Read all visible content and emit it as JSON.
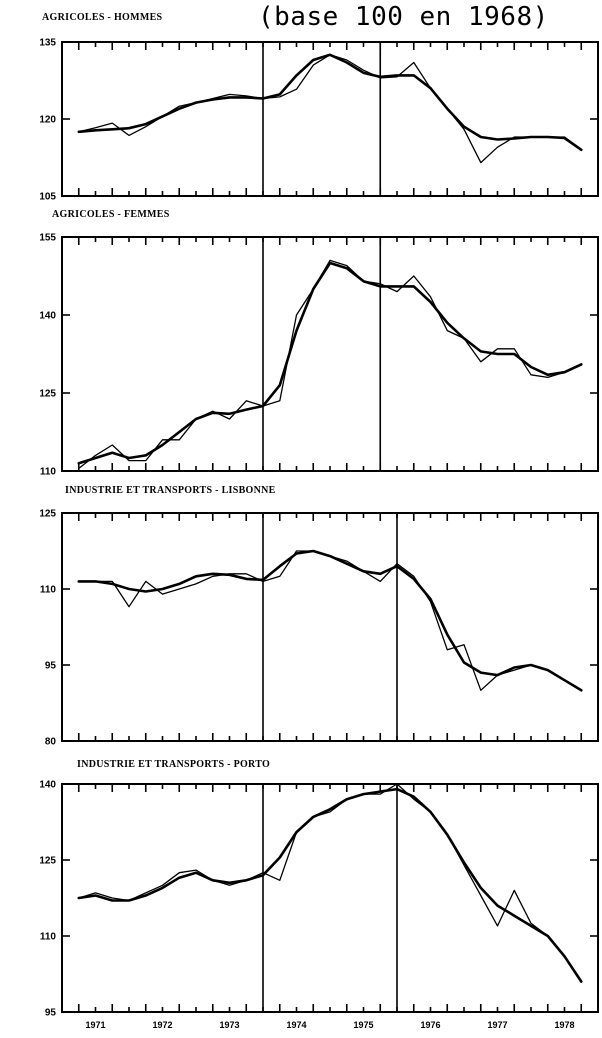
{
  "figure": {
    "title": "(base 100 en 1968)",
    "x_tick_labels": [
      "1971",
      "1972",
      "1973",
      "1974",
      "1975",
      "1976",
      "1977",
      "1978"
    ]
  },
  "chart_data": [
    {
      "type": "line",
      "title": "AGRICOLES - HOMMES",
      "ylim": [
        105,
        135
      ],
      "yticks": [
        105,
        120,
        135
      ],
      "x_range": [
        1970.75,
        1978.75
      ],
      "markers": [
        1973.75,
        1975.5
      ],
      "series": [
        {
          "style": "raw",
          "x": [
            1971.0,
            1971.25,
            1971.5,
            1971.75,
            1972.0,
            1972.25,
            1972.5,
            1972.75,
            1973.0,
            1973.25,
            1973.5,
            1973.75,
            1974.0,
            1974.25,
            1974.5,
            1974.75,
            1975.0,
            1975.25,
            1975.5,
            1975.75,
            1976.0,
            1976.25,
            1976.5,
            1976.75,
            1977.0,
            1977.25,
            1977.5,
            1977.75,
            1978.0,
            1978.25,
            1978.5
          ],
          "y": [
            117.5,
            118.3,
            119.2,
            116.8,
            118.5,
            120.5,
            122.5,
            123.2,
            124.0,
            124.8,
            124.5,
            124.0,
            124.3,
            125.8,
            130.5,
            132.5,
            131.5,
            129.5,
            128.0,
            128.2,
            131.0,
            126.0,
            122.0,
            118.0,
            111.5,
            114.5,
            116.5,
            116.5,
            116.5,
            116.5,
            114.0
          ]
        },
        {
          "style": "smoothed",
          "x": [
            1971.0,
            1971.25,
            1971.5,
            1971.75,
            1972.0,
            1972.25,
            1972.5,
            1972.75,
            1973.0,
            1973.25,
            1973.5,
            1973.75,
            1974.0,
            1974.25,
            1974.5,
            1974.75,
            1975.0,
            1975.25,
            1975.5,
            1975.75,
            1976.0,
            1976.25,
            1976.5,
            1976.75,
            1977.0,
            1977.25,
            1977.5,
            1977.75,
            1978.0,
            1978.25,
            1978.5
          ],
          "y": [
            117.5,
            117.8,
            118.0,
            118.2,
            119.0,
            120.5,
            122.0,
            123.2,
            123.8,
            124.2,
            124.2,
            124.0,
            124.8,
            128.5,
            131.5,
            132.5,
            131.0,
            129.0,
            128.2,
            128.5,
            128.5,
            126.0,
            122.0,
            118.5,
            116.5,
            116.0,
            116.2,
            116.5,
            116.5,
            116.3,
            114.0
          ]
        }
      ]
    },
    {
      "type": "line",
      "title": "AGRICOLES - FEMMES",
      "ylim": [
        110,
        155
      ],
      "yticks": [
        110,
        125,
        140,
        155
      ],
      "x_range": [
        1970.75,
        1978.75
      ],
      "markers": [
        1973.75,
        1975.5
      ],
      "series": [
        {
          "style": "raw",
          "x": [
            1971.0,
            1971.25,
            1971.5,
            1971.75,
            1972.0,
            1972.25,
            1972.5,
            1972.75,
            1973.0,
            1973.25,
            1973.5,
            1973.75,
            1974.0,
            1974.25,
            1974.5,
            1974.75,
            1975.0,
            1975.25,
            1975.5,
            1975.75,
            1976.0,
            1976.25,
            1976.5,
            1976.75,
            1977.0,
            1977.25,
            1977.5,
            1977.75,
            1978.0,
            1978.25,
            1978.5
          ],
          "y": [
            110.5,
            113.0,
            115.0,
            112.0,
            112.0,
            116.0,
            116.0,
            120.0,
            121.5,
            120.0,
            123.5,
            122.5,
            123.5,
            140.0,
            145.0,
            150.5,
            149.5,
            146.5,
            146.0,
            144.5,
            147.5,
            143.5,
            137.0,
            135.5,
            131.0,
            133.5,
            133.5,
            128.5,
            128.0,
            129.0,
            130.5
          ]
        },
        {
          "style": "smoothed",
          "x": [
            1971.0,
            1971.25,
            1971.5,
            1971.75,
            1972.0,
            1972.25,
            1972.5,
            1972.75,
            1973.0,
            1973.25,
            1973.5,
            1973.75,
            1974.0,
            1974.25,
            1974.5,
            1974.75,
            1975.0,
            1975.25,
            1975.5,
            1975.75,
            1976.0,
            1976.25,
            1976.5,
            1976.75,
            1977.0,
            1977.25,
            1977.5,
            1977.75,
            1978.0,
            1978.25,
            1978.5
          ],
          "y": [
            111.5,
            112.5,
            113.5,
            112.5,
            113.0,
            115.0,
            117.5,
            120.0,
            121.2,
            121.0,
            121.8,
            122.5,
            126.5,
            137.0,
            145.0,
            150.0,
            149.0,
            146.5,
            145.5,
            145.5,
            145.5,
            142.5,
            138.5,
            135.5,
            133.0,
            132.5,
            132.5,
            130.0,
            128.5,
            129.0,
            130.5
          ]
        }
      ]
    },
    {
      "type": "line",
      "title": "INDUSTRIE ET TRANSPORTS - LISBONNE",
      "ylim": [
        80,
        125
      ],
      "yticks": [
        80,
        95,
        110,
        125
      ],
      "x_range": [
        1970.75,
        1978.75
      ],
      "markers": [
        1973.75,
        1975.75
      ],
      "series": [
        {
          "style": "raw",
          "x": [
            1971.0,
            1971.25,
            1971.5,
            1971.75,
            1972.0,
            1972.25,
            1972.5,
            1972.75,
            1973.0,
            1973.25,
            1973.5,
            1973.75,
            1974.0,
            1974.25,
            1974.5,
            1974.75,
            1975.0,
            1975.25,
            1975.5,
            1975.75,
            1976.0,
            1976.25,
            1976.5,
            1976.75,
            1977.0,
            1977.25,
            1977.5,
            1977.75,
            1978.0,
            1978.25,
            1978.5
          ],
          "y": [
            111.5,
            111.5,
            111.5,
            106.5,
            111.5,
            109.0,
            110.0,
            111.0,
            112.5,
            113.0,
            113.0,
            111.5,
            112.5,
            117.5,
            117.5,
            116.5,
            115.5,
            113.5,
            111.5,
            115.0,
            112.5,
            107.5,
            98.0,
            99.0,
            90.0,
            93.0,
            94.0,
            95.0,
            94.0,
            92.0,
            90.0
          ]
        },
        {
          "style": "smoothed",
          "x": [
            1971.0,
            1971.25,
            1971.5,
            1971.75,
            1972.0,
            1972.25,
            1972.5,
            1972.75,
            1973.0,
            1973.25,
            1973.5,
            1973.75,
            1974.0,
            1974.25,
            1974.5,
            1974.75,
            1975.0,
            1975.25,
            1975.5,
            1975.75,
            1976.0,
            1976.25,
            1976.5,
            1976.75,
            1977.0,
            1977.25,
            1977.5,
            1977.75,
            1978.0,
            1978.25,
            1978.5
          ],
          "y": [
            111.5,
            111.5,
            111.0,
            110.0,
            109.5,
            110.0,
            111.0,
            112.5,
            113.0,
            112.8,
            112.0,
            111.8,
            114.5,
            117.0,
            117.5,
            116.5,
            115.0,
            113.5,
            113.0,
            114.5,
            112.0,
            108.0,
            101.0,
            95.5,
            93.5,
            93.0,
            94.5,
            95.0,
            94.0,
            92.0,
            90.0
          ]
        }
      ]
    },
    {
      "type": "line",
      "title": "INDUSTRIE ET TRANSPORTS - PORTO",
      "ylim": [
        95,
        140
      ],
      "yticks": [
        95,
        110,
        125,
        140
      ],
      "x_range": [
        1970.75,
        1978.75
      ],
      "markers": [
        1973.75,
        1975.75
      ],
      "series": [
        {
          "style": "raw",
          "x": [
            1971.0,
            1971.25,
            1971.5,
            1971.75,
            1972.0,
            1972.25,
            1972.5,
            1972.75,
            1973.0,
            1973.25,
            1973.5,
            1973.75,
            1974.0,
            1974.25,
            1974.5,
            1974.75,
            1975.0,
            1975.25,
            1975.5,
            1975.75,
            1976.0,
            1976.25,
            1976.5,
            1976.75,
            1977.0,
            1977.25,
            1977.5,
            1977.75,
            1978.0,
            1978.25,
            1978.5
          ],
          "y": [
            117.5,
            118.5,
            117.5,
            117.0,
            118.5,
            120.0,
            122.5,
            123.0,
            121.0,
            120.0,
            121.0,
            122.5,
            121.0,
            130.5,
            133.5,
            134.5,
            137.0,
            138.0,
            138.0,
            140.0,
            137.0,
            134.5,
            130.0,
            124.0,
            118.0,
            112.0,
            119.0,
            112.5,
            110.0,
            106.0,
            101.0
          ]
        },
        {
          "style": "smoothed",
          "x": [
            1971.0,
            1971.25,
            1971.5,
            1971.75,
            1972.0,
            1972.25,
            1972.5,
            1972.75,
            1973.0,
            1973.25,
            1973.5,
            1973.75,
            1974.0,
            1974.25,
            1974.5,
            1974.75,
            1975.0,
            1975.25,
            1975.5,
            1975.75,
            1976.0,
            1976.25,
            1976.5,
            1976.75,
            1977.0,
            1977.25,
            1977.5,
            1977.75,
            1978.0,
            1978.25,
            1978.5
          ],
          "y": [
            117.5,
            118.0,
            117.0,
            117.0,
            118.0,
            119.5,
            121.5,
            122.5,
            121.0,
            120.5,
            121.0,
            122.0,
            125.5,
            130.5,
            133.5,
            135.0,
            137.0,
            138.0,
            138.5,
            139.0,
            137.5,
            134.5,
            130.0,
            124.5,
            119.5,
            116.0,
            114.0,
            112.0,
            110.0,
            106.0,
            101.0
          ]
        }
      ]
    }
  ]
}
